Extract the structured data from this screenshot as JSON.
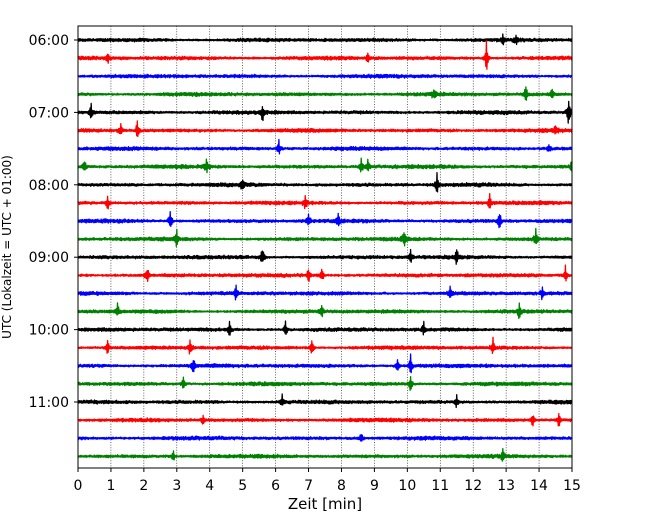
{
  "chart_data": {
    "type": "line",
    "title": "",
    "xlabel": "Zeit  [min]",
    "ylabel": "UTC (Lokalzeit = UTC + 01:00)",
    "xlim": [
      0,
      15
    ],
    "x_ticks": [
      "0",
      "1",
      "2",
      "3",
      "4",
      "5",
      "6",
      "7",
      "8",
      "9",
      "10",
      "11",
      "12",
      "13",
      "14",
      "15"
    ],
    "y_tick_labels": [
      "06:00",
      "07:00",
      "08:00",
      "09:00",
      "10:00",
      "11:00"
    ],
    "grid": "vertical dotted",
    "trace_interval_minutes": 15,
    "first_trace_time": "06:00",
    "color_cycle": [
      "#000000",
      "#ff0000",
      "#0000ff",
      "#008000"
    ],
    "traces": [
      {
        "time": "06:00",
        "events": [
          [
            12.9,
            6
          ],
          [
            13.3,
            5
          ]
        ]
      },
      {
        "time": "06:15",
        "events": [
          [
            0.9,
            6
          ],
          [
            8.8,
            6
          ],
          [
            12.4,
            17
          ]
        ]
      },
      {
        "time": "06:30",
        "events": []
      },
      {
        "time": "06:45",
        "events": [
          [
            10.8,
            6
          ],
          [
            13.6,
            10
          ],
          [
            14.4,
            8
          ]
        ]
      },
      {
        "time": "07:00",
        "events": [
          [
            0.4,
            9
          ],
          [
            5.6,
            10
          ],
          [
            14.9,
            18
          ]
        ]
      },
      {
        "time": "07:15",
        "events": [
          [
            1.3,
            9
          ],
          [
            1.8,
            10
          ],
          [
            14.5,
            6
          ]
        ]
      },
      {
        "time": "07:30",
        "events": [
          [
            6.1,
            9
          ],
          [
            14.3,
            5
          ]
        ]
      },
      {
        "time": "07:45",
        "events": [
          [
            0.2,
            10
          ],
          [
            3.9,
            9
          ],
          [
            8.6,
            10
          ],
          [
            8.8,
            9
          ],
          [
            15.0,
            10
          ]
        ]
      },
      {
        "time": "08:00",
        "events": [
          [
            5.0,
            9
          ],
          [
            10.9,
            12
          ]
        ]
      },
      {
        "time": "08:15",
        "events": [
          [
            0.9,
            9
          ],
          [
            6.9,
            9
          ],
          [
            12.5,
            8
          ]
        ]
      },
      {
        "time": "08:30",
        "events": [
          [
            2.8,
            11
          ],
          [
            7.0,
            9
          ],
          [
            7.9,
            9
          ],
          [
            12.8,
            10
          ]
        ]
      },
      {
        "time": "08:45",
        "events": [
          [
            3.0,
            10
          ],
          [
            9.9,
            9
          ],
          [
            13.9,
            10
          ]
        ]
      },
      {
        "time": "09:00",
        "events": [
          [
            5.6,
            12
          ],
          [
            10.1,
            8
          ],
          [
            11.5,
            9
          ]
        ]
      },
      {
        "time": "09:15",
        "events": [
          [
            2.1,
            10
          ],
          [
            7.0,
            10
          ],
          [
            7.4,
            9
          ],
          [
            14.8,
            11
          ]
        ]
      },
      {
        "time": "09:30",
        "events": [
          [
            4.8,
            9
          ],
          [
            11.3,
            10
          ],
          [
            14.1,
            8
          ]
        ]
      },
      {
        "time": "09:45",
        "events": [
          [
            1.2,
            8
          ],
          [
            7.4,
            9
          ],
          [
            13.4,
            8
          ]
        ]
      },
      {
        "time": "10:00",
        "events": [
          [
            4.6,
            8
          ],
          [
            6.3,
            9
          ],
          [
            10.5,
            8
          ]
        ]
      },
      {
        "time": "10:15",
        "events": [
          [
            0.9,
            8
          ],
          [
            3.4,
            9
          ],
          [
            7.1,
            8
          ],
          [
            12.6,
            9
          ]
        ]
      },
      {
        "time": "10:30",
        "events": [
          [
            3.5,
            9
          ],
          [
            9.7,
            7
          ],
          [
            10.1,
            11
          ]
        ]
      },
      {
        "time": "10:45",
        "events": [
          [
            3.2,
            7
          ],
          [
            10.1,
            10
          ]
        ]
      },
      {
        "time": "11:00",
        "events": [
          [
            6.2,
            9
          ],
          [
            11.5,
            7
          ]
        ]
      },
      {
        "time": "11:15",
        "events": [
          [
            3.8,
            7
          ],
          [
            13.8,
            8
          ],
          [
            14.6,
            9
          ]
        ]
      },
      {
        "time": "11:30",
        "events": [
          [
            8.6,
            6
          ]
        ]
      },
      {
        "time": "11:45",
        "events": [
          [
            2.9,
            6
          ],
          [
            12.9,
            6
          ]
        ]
      }
    ]
  }
}
